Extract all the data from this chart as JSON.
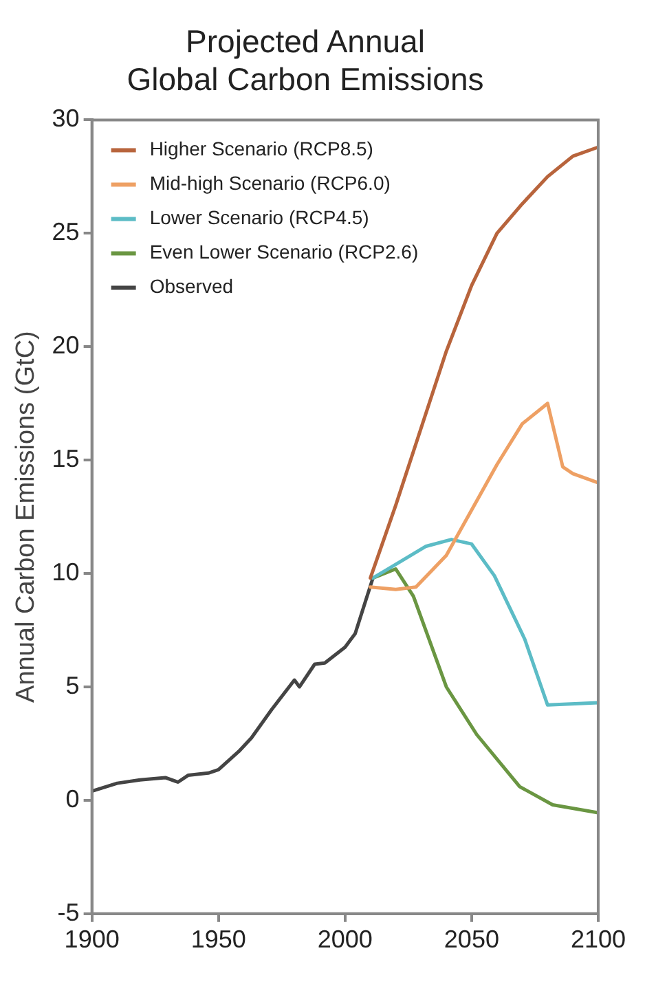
{
  "chart_data": {
    "type": "line",
    "title": [
      "Projected Annual",
      "Global Carbon Emissions"
    ],
    "ylabel": "Annual Carbon Emissions (GtC)",
    "xlim": [
      1900,
      2100
    ],
    "xticks": [
      1900,
      1950,
      2000,
      2050,
      2100
    ],
    "ylim": [
      -5,
      30
    ],
    "yticks": [
      -5,
      0,
      5,
      10,
      15,
      20,
      25,
      30
    ],
    "grid": false,
    "legend": "top left",
    "marker": "none",
    "line_style": "solid",
    "series": [
      {
        "name": "Higher Scenario (RCP8.5)",
        "color": "#b8643c",
        "x": [
          2010,
          2020,
          2030,
          2040,
          2050,
          2060,
          2070,
          2080,
          2090,
          2100
        ],
        "values": [
          9.8,
          13.0,
          16.4,
          19.8,
          22.7,
          25.0,
          26.3,
          27.5,
          28.4,
          28.8
        ]
      },
      {
        "name": "Mid-high Scenario (RCP6.0)",
        "color": "#eea064",
        "x": [
          2010,
          2020,
          2028,
          2040,
          2050,
          2060,
          2070,
          2080,
          2086,
          2090,
          2100
        ],
        "values": [
          9.4,
          9.3,
          9.4,
          10.8,
          12.8,
          14.8,
          16.6,
          17.5,
          14.7,
          14.4,
          14.0
        ]
      },
      {
        "name": "Lower Scenario (RCP4.5)",
        "color": "#5cbcc6",
        "x": [
          2011,
          2020,
          2032,
          2042,
          2050,
          2059,
          2071,
          2080,
          2100
        ],
        "values": [
          9.8,
          10.4,
          11.2,
          11.5,
          11.3,
          9.9,
          7.1,
          4.2,
          4.3
        ]
      },
      {
        "name": "Even Lower Scenario (RCP2.6)",
        "color": "#6a9642",
        "x": [
          2011,
          2020,
          2027,
          2040,
          2052,
          2069,
          2082,
          2100
        ],
        "values": [
          9.8,
          10.2,
          9.0,
          5.0,
          2.9,
          0.6,
          -0.2,
          -0.55
        ]
      },
      {
        "name": "Observed",
        "color": "#444444",
        "x": [
          1900,
          1910,
          1919,
          1929,
          1934,
          1938,
          1946,
          1950,
          1958,
          1963,
          1971,
          1980,
          1982,
          1988,
          1992,
          2000,
          2004,
          2008,
          2011
        ],
        "values": [
          0.4,
          0.75,
          0.9,
          1.0,
          0.8,
          1.1,
          1.2,
          1.35,
          2.15,
          2.75,
          4.0,
          5.3,
          5.0,
          6.0,
          6.05,
          6.75,
          7.35,
          8.75,
          9.8
        ]
      }
    ]
  }
}
